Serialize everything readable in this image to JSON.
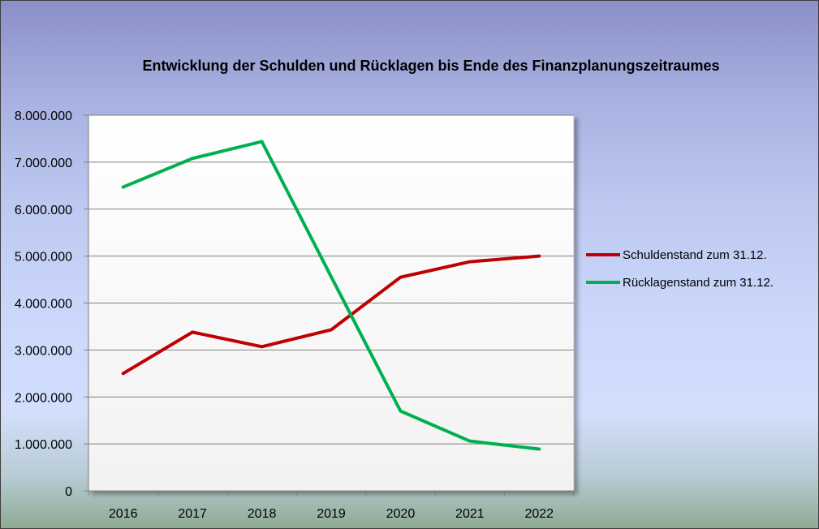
{
  "chart_data": {
    "type": "line",
    "title": "Entwicklung der Schulden und Rücklagen bis Ende des Finanzplanungszeitraumes",
    "xlabel": "",
    "ylabel": "",
    "categories": [
      "2016",
      "2017",
      "2018",
      "2019",
      "2020",
      "2021",
      "2022"
    ],
    "ylim": [
      0,
      8000000
    ],
    "y_ticks": [
      0,
      1000000,
      2000000,
      3000000,
      4000000,
      5000000,
      6000000,
      7000000,
      8000000
    ],
    "y_tick_labels": [
      "0",
      "1.000.000",
      "2.000.000",
      "3.000.000",
      "4.000.000",
      "5.000.000",
      "6.000.000",
      "7.000.000",
      "8.000.000"
    ],
    "grid": true,
    "legend_position": "right",
    "series": [
      {
        "name": "Schuldenstand zum 31.12.",
        "color": "#c00000",
        "values": [
          2500000,
          3380000,
          3070000,
          3430000,
          4550000,
          4880000,
          5000000
        ]
      },
      {
        "name": "Rücklagenstand zum 31.12.",
        "color": "#00b050",
        "values": [
          6470000,
          7080000,
          7440000,
          4560000,
          1700000,
          1060000,
          890000
        ]
      }
    ]
  }
}
